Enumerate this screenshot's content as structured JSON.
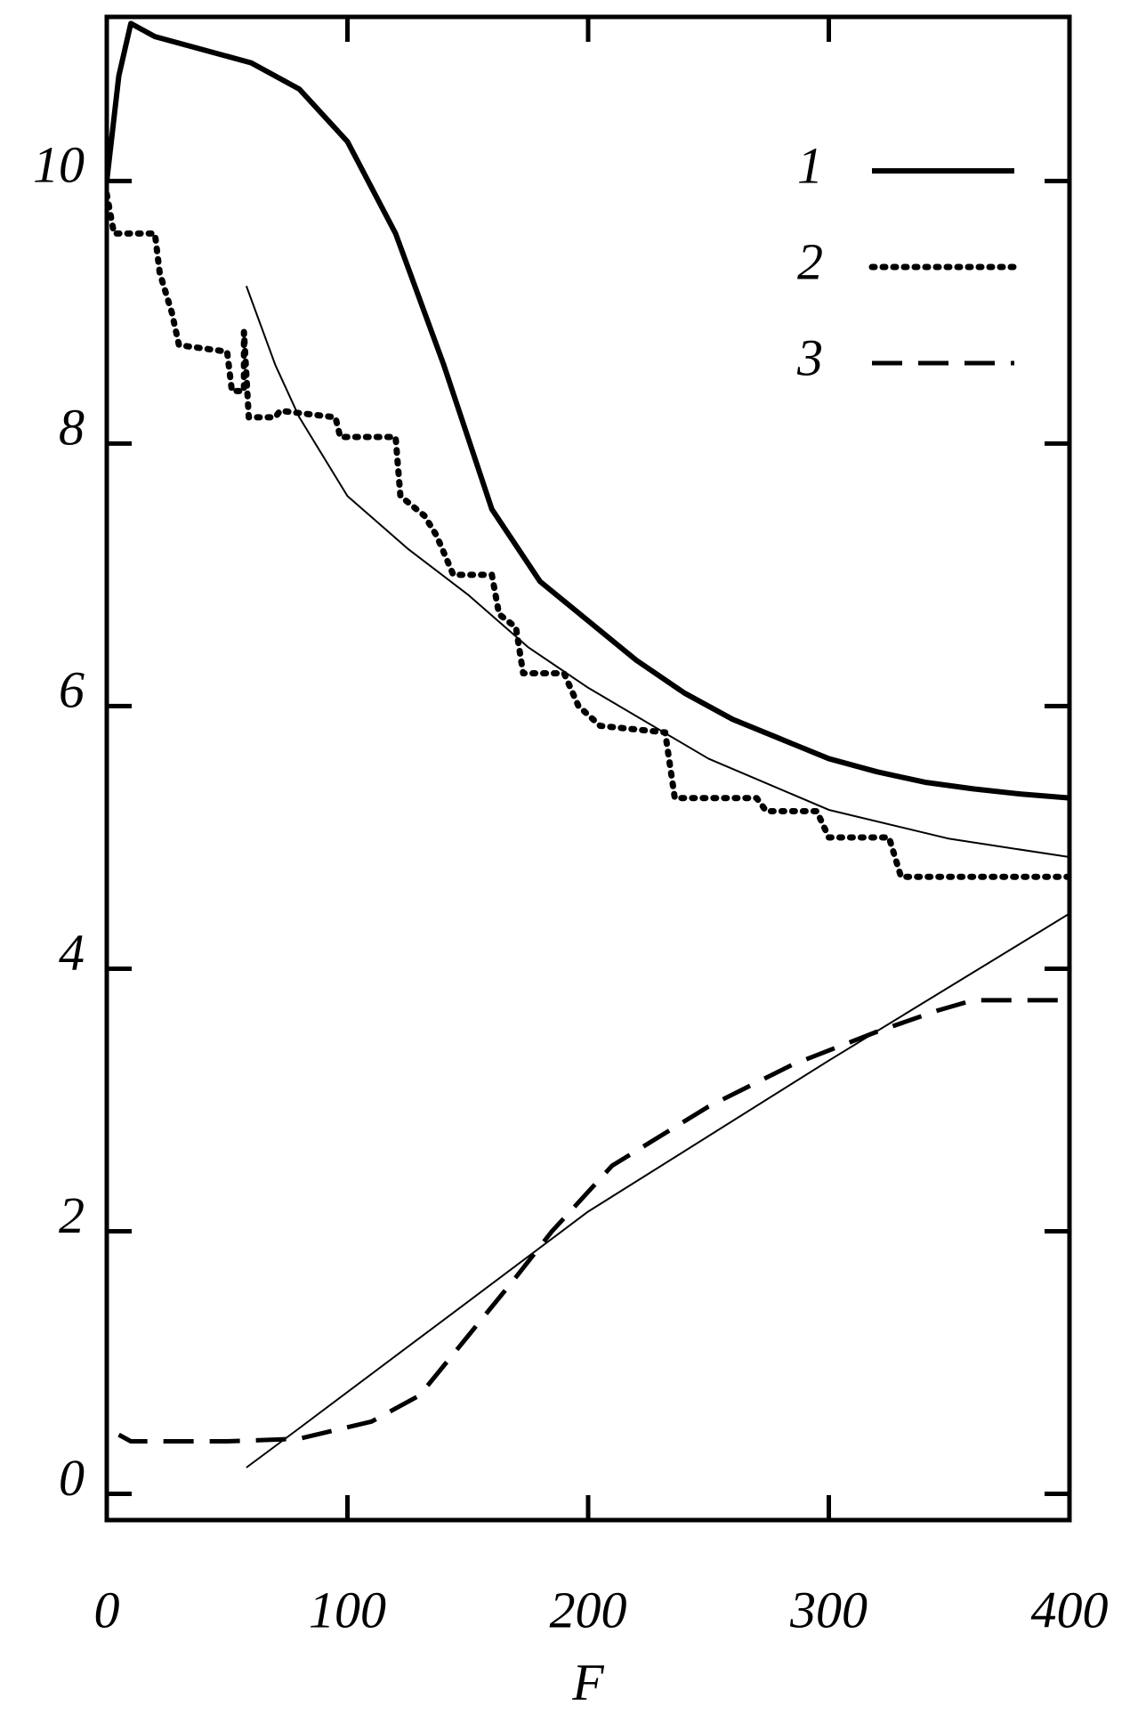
{
  "chart_data": {
    "type": "line",
    "x_label": "F",
    "xlim": [
      0,
      400
    ],
    "ylim": [
      -0.2,
      11.25
    ],
    "xticks": [
      0,
      100,
      200,
      300,
      400
    ],
    "yticks": [
      0,
      2,
      4,
      6,
      8,
      10
    ],
    "series": [
      {
        "name": "1",
        "color": "#000000",
        "dash": "solid",
        "width": 6,
        "x": [
          0,
          5,
          10,
          20,
          40,
          60,
          80,
          100,
          120,
          140,
          160,
          180,
          200,
          220,
          240,
          260,
          280,
          300,
          320,
          340,
          360,
          380,
          400
        ],
        "values": [
          10.0,
          10.8,
          11.2,
          11.1,
          11.0,
          10.9,
          10.7,
          10.3,
          9.6,
          8.6,
          7.5,
          6.95,
          6.65,
          6.35,
          6.1,
          5.9,
          5.75,
          5.6,
          5.5,
          5.42,
          5.37,
          5.33,
          5.3
        ]
      },
      {
        "color": "#000000",
        "dash": "solid",
        "width": 2,
        "x": [
          58,
          70,
          80,
          100,
          125,
          150,
          175,
          200,
          250,
          300,
          350,
          400
        ],
        "values": [
          9.2,
          8.6,
          8.2,
          7.6,
          7.2,
          6.85,
          6.45,
          6.14,
          5.6,
          5.21,
          4.99,
          4.85
        ]
      },
      {
        "color": "#000000",
        "dash": "solid",
        "width": 2,
        "x": [
          58,
          80,
          120,
          200,
          300,
          400
        ],
        "values": [
          0.2,
          0.5,
          1.05,
          2.15,
          3.3,
          4.42
        ]
      },
      {
        "name": "2",
        "color": "#000000",
        "dash": "dotted",
        "width": 7,
        "x": [
          0,
          3,
          20,
          22,
          27,
          30,
          50,
          52,
          57,
          57,
          59,
          70,
          72,
          95,
          97,
          120,
          122,
          132,
          137,
          144,
          160,
          163,
          170,
          173,
          190,
          196,
          205,
          232,
          236,
          270,
          274,
          295,
          300,
          325,
          330,
          400
        ],
        "values": [
          9.9,
          9.6,
          9.6,
          9.3,
          9.0,
          8.75,
          8.7,
          8.4,
          8.4,
          8.85,
          8.2,
          8.2,
          8.25,
          8.2,
          8.05,
          8.05,
          7.6,
          7.45,
          7.3,
          7.0,
          7.0,
          6.7,
          6.6,
          6.25,
          6.25,
          6.0,
          5.85,
          5.8,
          5.3,
          5.3,
          5.2,
          5.2,
          5.0,
          5.0,
          4.7,
          4.7
        ]
      },
      {
        "name": "3",
        "color": "#000000",
        "dash": "dashed",
        "width": 5,
        "x": [
          5,
          10,
          50,
          80,
          110,
          130,
          150,
          170,
          185,
          210,
          250,
          285,
          320,
          345,
          360,
          400
        ],
        "values": [
          0.45,
          0.4,
          0.4,
          0.42,
          0.55,
          0.75,
          1.2,
          1.65,
          2.0,
          2.5,
          2.95,
          3.27,
          3.52,
          3.68,
          3.76,
          3.76
        ]
      }
    ]
  }
}
